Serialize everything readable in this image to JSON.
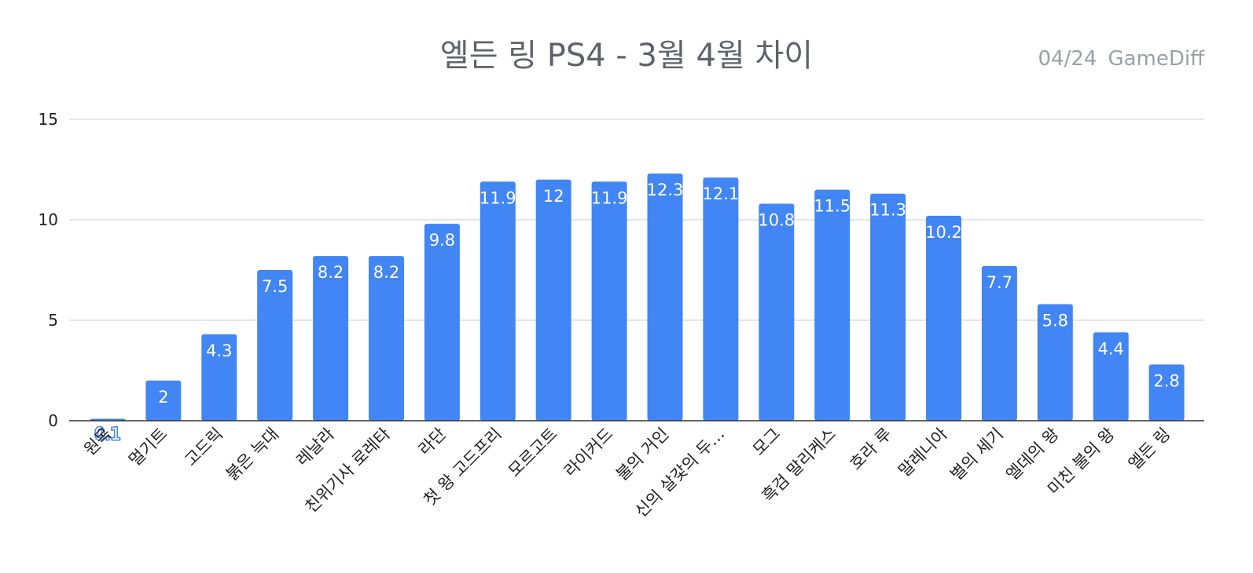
{
  "header": {
    "title": "엘든 링 PS4 - 3월 4월 차이",
    "date": "04/24",
    "source": "GameDiff"
  },
  "chart_data": {
    "type": "bar",
    "title": "엘든 링 PS4 - 3월 4월 차이",
    "xlabel": "",
    "ylabel": "",
    "ylim": [
      0,
      15
    ],
    "yticks": [
      0,
      5,
      10,
      15
    ],
    "grid": true,
    "legend": "none",
    "bar_color": "#4285f4",
    "categories": [
      "원목",
      "멀기트",
      "고드릭",
      "붉은 늑대",
      "레날라",
      "친위기사 로레타",
      "라단",
      "첫 왕 고드프리",
      "모르고트",
      "라이커드",
      "불의 거인",
      "신의 살갗의 두…",
      "모그",
      "흑검 말리케스",
      "호라 루",
      "말레니아",
      "별의 세기",
      "엘데의 왕",
      "미친 불의 왕",
      "엘든 링"
    ],
    "values": [
      0.1,
      2,
      4.3,
      7.5,
      8.2,
      8.2,
      9.8,
      11.9,
      12,
      11.9,
      12.3,
      12.1,
      10.8,
      11.5,
      11.3,
      10.2,
      7.7,
      5.8,
      4.4,
      2.8
    ],
    "value_labels": [
      "0.1",
      "2",
      "4.3",
      "7.5",
      "8.2",
      "8.2",
      "9.8",
      "11.9",
      "12",
      "11.9",
      "12.3",
      "12.1",
      "10.8",
      "11.5",
      "11.3",
      "10.2",
      "7.7",
      "5.8",
      "4.4",
      "2.8"
    ]
  }
}
